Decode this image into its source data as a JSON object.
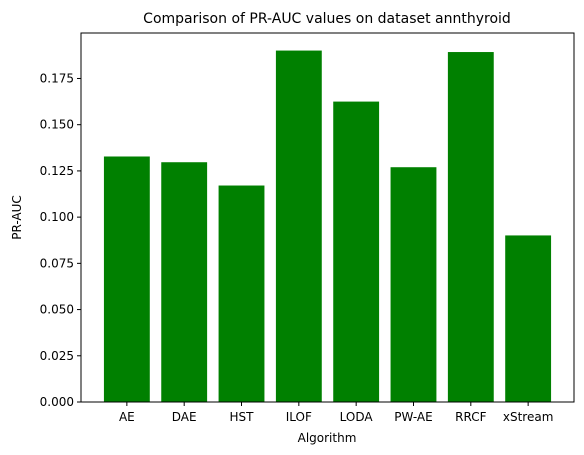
{
  "chart_data": {
    "type": "bar",
    "title": "Comparison of PR-AUC values on dataset annthyroid",
    "xlabel": "Algorithm",
    "ylabel": "PR-AUC",
    "categories": [
      "AE",
      "DAE",
      "HST",
      "ILOF",
      "LODA",
      "PW-AE",
      "RRCF",
      "xStream"
    ],
    "values": [
      0.1328,
      0.1297,
      0.1171,
      0.1901,
      0.1625,
      0.127,
      0.1893,
      0.0901
    ],
    "ylim": [
      0,
      0.1996
    ],
    "yticks": [
      0.0,
      0.025,
      0.05,
      0.075,
      0.1,
      0.125,
      0.15,
      0.175
    ],
    "ytick_labels": [
      "0.000",
      "0.025",
      "0.050",
      "0.075",
      "0.100",
      "0.125",
      "0.150",
      "0.175"
    ],
    "bar_color": "#008000",
    "grid": false,
    "legend": "none"
  }
}
